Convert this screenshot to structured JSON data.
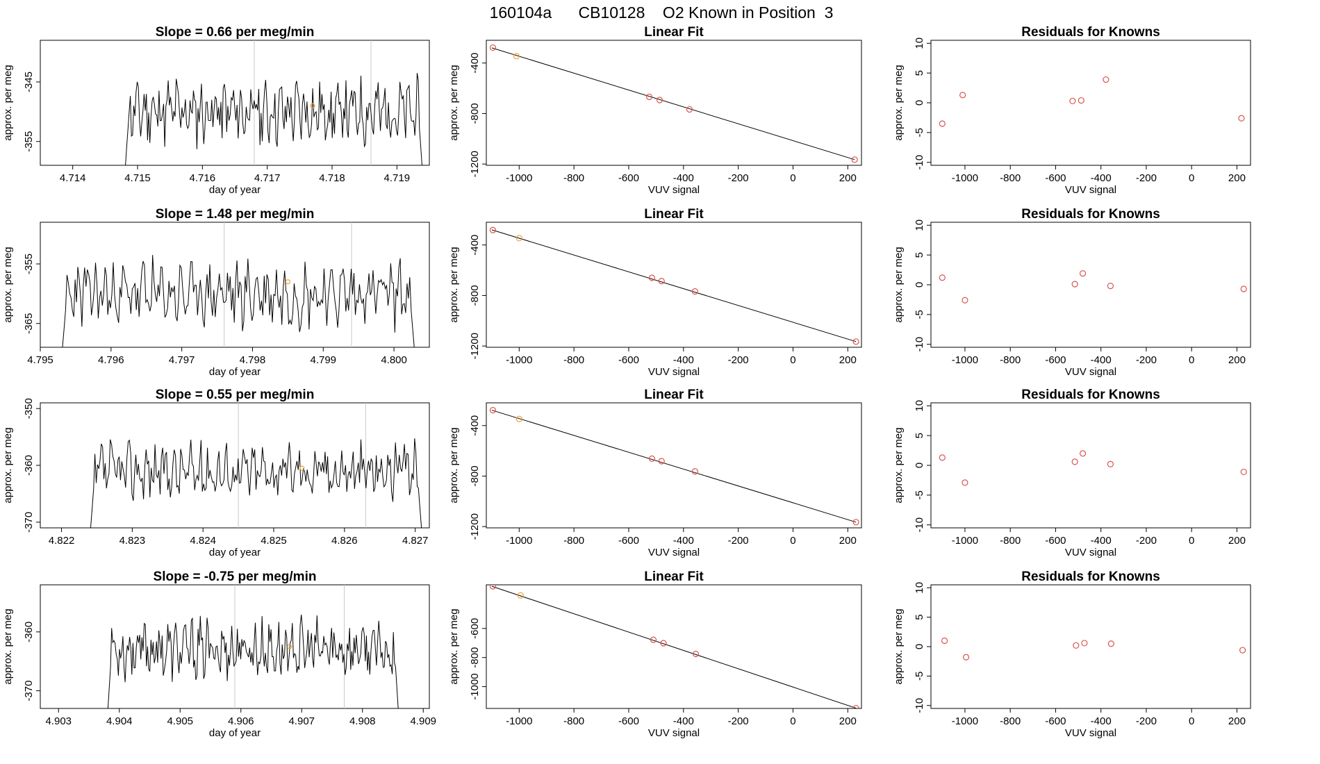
{
  "figure_title": "160104a      CB10128    O2 Known in Position  3",
  "colors": {
    "fit_point": "#E8A23C",
    "scatter_point": "#D9534F",
    "line": "#000000",
    "window": "#C8C8C8"
  },
  "chart_data": [
    {
      "type": "line",
      "row": 0,
      "title": "Slope =  0.66  per meg/min",
      "xlabel": "day of year",
      "ylabel": "approx. per meg",
      "xlim": [
        4.7135,
        4.7195
      ],
      "ylim": [
        -359,
        -338
      ],
      "xticks": [
        4.714,
        4.715,
        4.716,
        4.717,
        4.718,
        4.719
      ],
      "yticks": [
        -345,
        -355
      ],
      "x_start": 4.7148,
      "x_end": 4.7194,
      "ymean": -350,
      "amp": 5.5,
      "markers": [
        4.7168,
        4.7186
      ],
      "highlight": [
        4.7177,
        -349
      ],
      "seed": 11
    },
    {
      "type": "scatter",
      "row": 0,
      "title": "Linear Fit",
      "xlabel": "VUV signal",
      "ylabel": "approx. per meg",
      "xlim": [
        -1120,
        250
      ],
      "ylim": [
        -1210,
        -220
      ],
      "xticks": [
        -1000,
        -800,
        -600,
        -400,
        -200,
        0,
        200
      ],
      "yticks": [
        -400,
        -800,
        -1200
      ],
      "line": [
        [
          -1100,
          -280
        ],
        [
          225,
          -1165
        ]
      ],
      "points": [
        [
          -1096,
          -278
        ],
        [
          -1010,
          -346
        ],
        [
          -525,
          -668
        ],
        [
          -487,
          -693
        ],
        [
          -378,
          -767
        ],
        [
          225,
          -1165
        ]
      ],
      "highlight_index": 1
    },
    {
      "type": "scatter",
      "row": 0,
      "title": "Residuals for Knowns",
      "xlabel": "VUV signal",
      "ylabel": "approx. per meg",
      "xlim": [
        -1150,
        260
      ],
      "ylim": [
        -10.5,
        10.5
      ],
      "xticks": [
        -1000,
        -800,
        -600,
        -400,
        -200,
        0,
        200
      ],
      "yticks": [
        10,
        5,
        0,
        -5,
        -10
      ],
      "points": [
        [
          -1100,
          -3.5
        ],
        [
          -1010,
          1.3
        ],
        [
          -525,
          0.3
        ],
        [
          -487,
          0.4
        ],
        [
          -378,
          3.9
        ],
        [
          220,
          -2.6
        ]
      ]
    },
    {
      "type": "line",
      "row": 1,
      "title": "Slope =  1.48  per meg/min",
      "xlabel": "day of year",
      "ylabel": "approx. per meg",
      "xlim": [
        4.795,
        4.8005
      ],
      "ylim": [
        -369,
        -348
      ],
      "xticks": [
        4.795,
        4.796,
        4.797,
        4.798,
        4.799,
        4.8
      ],
      "yticks": [
        -355,
        -365
      ],
      "x_start": 4.7953,
      "x_end": 4.8003,
      "ymean": -360,
      "amp": 5.5,
      "markers": [
        4.7976,
        4.7994
      ],
      "highlight": [
        4.7985,
        -358
      ],
      "seed": 23
    },
    {
      "type": "scatter",
      "row": 1,
      "title": "Linear Fit",
      "xlabel": "VUV signal",
      "ylabel": "approx. per meg",
      "xlim": [
        -1120,
        250
      ],
      "ylim": [
        -1210,
        -220
      ],
      "xticks": [
        -1000,
        -800,
        -600,
        -400,
        -200,
        0,
        200
      ],
      "yticks": [
        -400,
        -800,
        -1200
      ],
      "line": [
        [
          -1100,
          -280
        ],
        [
          230,
          -1165
        ]
      ],
      "points": [
        [
          -1096,
          -282
        ],
        [
          -1000,
          -346
        ],
        [
          -515,
          -660
        ],
        [
          -480,
          -686
        ],
        [
          -358,
          -768
        ],
        [
          230,
          -1165
        ]
      ],
      "highlight_index": 1
    },
    {
      "type": "scatter",
      "row": 1,
      "title": "Residuals for Knowns",
      "xlabel": "VUV signal",
      "ylabel": "approx. per meg",
      "xlim": [
        -1150,
        260
      ],
      "ylim": [
        -10.5,
        10.5
      ],
      "xticks": [
        -1000,
        -800,
        -600,
        -400,
        -200,
        0,
        200
      ],
      "yticks": [
        10,
        5,
        0,
        -5,
        -10
      ],
      "points": [
        [
          -1100,
          1.2
        ],
        [
          -1000,
          -2.6
        ],
        [
          -515,
          0.1
        ],
        [
          -480,
          1.9
        ],
        [
          -358,
          -0.2
        ],
        [
          230,
          -0.7
        ]
      ]
    },
    {
      "type": "line",
      "row": 2,
      "title": "Slope =  0.55  per meg/min",
      "xlabel": "day of year",
      "ylabel": "approx. per meg",
      "xlim": [
        4.8217,
        4.8272
      ],
      "ylim": [
        -371,
        -349
      ],
      "xticks": [
        4.822,
        4.823,
        4.824,
        4.825,
        4.826,
        4.827
      ],
      "yticks": [
        -350,
        -360,
        -370
      ],
      "x_start": 4.8224,
      "x_end": 4.8271,
      "ymean": -361,
      "amp": 5,
      "markers": [
        4.8245,
        4.8263
      ],
      "highlight": [
        4.8254,
        -360.5
      ],
      "seed": 37
    },
    {
      "type": "scatter",
      "row": 2,
      "title": "Linear Fit",
      "xlabel": "VUV signal",
      "ylabel": "approx. per meg",
      "xlim": [
        -1120,
        250
      ],
      "ylim": [
        -1210,
        -220
      ],
      "xticks": [
        -1000,
        -800,
        -600,
        -400,
        -200,
        0,
        200
      ],
      "yticks": [
        -400,
        -800,
        -1200
      ],
      "line": [
        [
          -1100,
          -278
        ],
        [
          230,
          -1165
        ]
      ],
      "points": [
        [
          -1096,
          -278
        ],
        [
          -1000,
          -348
        ],
        [
          -515,
          -662
        ],
        [
          -480,
          -682
        ],
        [
          -358,
          -763
        ],
        [
          230,
          -1165
        ]
      ],
      "highlight_index": 1
    },
    {
      "type": "scatter",
      "row": 2,
      "title": "Residuals for Knowns",
      "xlabel": "VUV signal",
      "ylabel": "approx. per meg",
      "xlim": [
        -1150,
        260
      ],
      "ylim": [
        -10.5,
        10.5
      ],
      "xticks": [
        -1000,
        -800,
        -600,
        -400,
        -200,
        0,
        200
      ],
      "yticks": [
        10,
        5,
        0,
        -5,
        -10
      ],
      "points": [
        [
          -1100,
          1.3
        ],
        [
          -1000,
          -2.9
        ],
        [
          -515,
          0.6
        ],
        [
          -480,
          2.0
        ],
        [
          -358,
          0.2
        ],
        [
          230,
          -1.1
        ]
      ]
    },
    {
      "type": "line",
      "row": 3,
      "title": "Slope =  -0.75  per meg/min",
      "xlabel": "day of year",
      "ylabel": "approx. per meg",
      "xlim": [
        4.9027,
        4.9091
      ],
      "ylim": [
        -373,
        -352
      ],
      "xticks": [
        4.903,
        4.904,
        4.905,
        4.906,
        4.907,
        4.908,
        4.909
      ],
      "yticks": [
        -360,
        -370
      ],
      "x_start": 4.9038,
      "x_end": 4.9086,
      "ymean": -363,
      "amp": 5,
      "markers": [
        4.9059,
        4.9077
      ],
      "highlight": [
        4.9068,
        -362.5
      ],
      "seed": 53
    },
    {
      "type": "scatter",
      "row": 3,
      "title": "Linear Fit",
      "xlabel": "VUV signal",
      "ylabel": "approx. per meg",
      "xlim": [
        -1120,
        250
      ],
      "ylim": [
        -1150,
        -300
      ],
      "xticks": [
        -1000,
        -800,
        -600,
        -400,
        -200,
        0,
        200
      ],
      "yticks": [
        -600,
        -800,
        -1000
      ],
      "line": [
        [
          -1100,
          -310
        ],
        [
          230,
          -1148
        ]
      ],
      "points": [
        [
          -1096,
          -310
        ],
        [
          -995,
          -373
        ],
        [
          -510,
          -678
        ],
        [
          -473,
          -701
        ],
        [
          -355,
          -775
        ],
        [
          230,
          -1148
        ]
      ],
      "highlight_index": 1
    },
    {
      "type": "scatter",
      "row": 3,
      "title": "Residuals for Knowns",
      "xlabel": "VUV signal",
      "ylabel": "approx. per meg",
      "xlim": [
        -1150,
        260
      ],
      "ylim": [
        -10.5,
        10.5
      ],
      "xticks": [
        -1000,
        -800,
        -600,
        -400,
        -200,
        0,
        200
      ],
      "yticks": [
        10,
        5,
        0,
        -5,
        -10
      ],
      "points": [
        [
          -1090,
          1.0
        ],
        [
          -995,
          -1.8
        ],
        [
          -510,
          0.2
        ],
        [
          -473,
          0.6
        ],
        [
          -355,
          0.5
        ],
        [
          225,
          -0.6
        ]
      ]
    }
  ]
}
